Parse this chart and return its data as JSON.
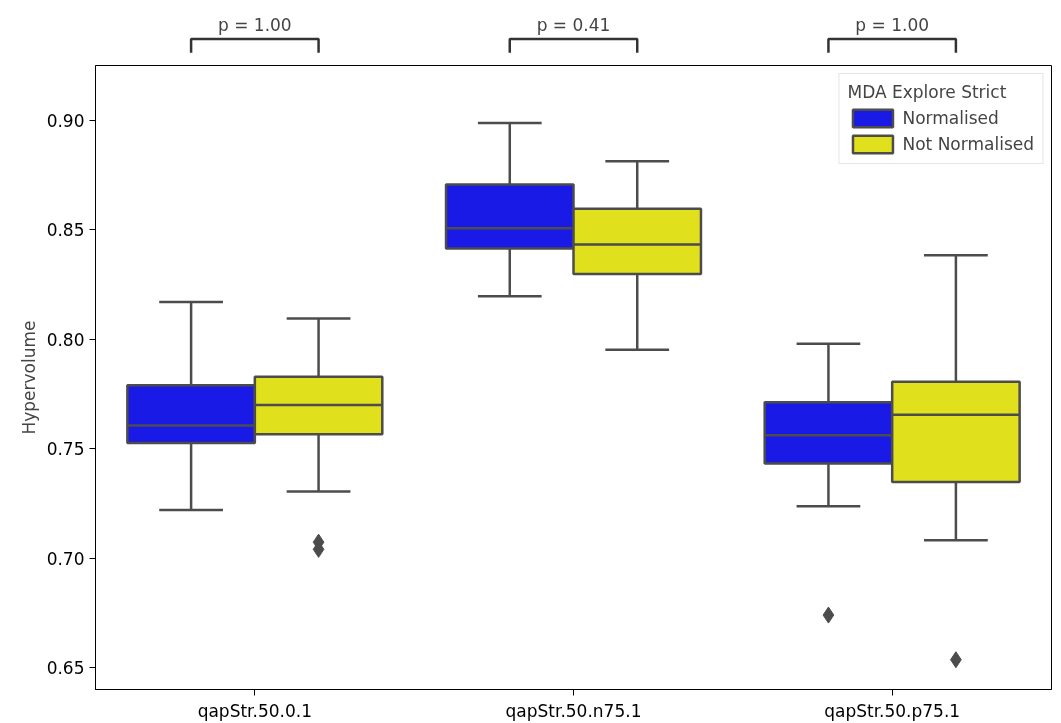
{
  "chart_data": {
    "type": "box",
    "categories": [
      "qapStr.50.0.1",
      "qapStr.50.n75.1",
      "qapStr.50.p75.1"
    ],
    "ylabel": "Hypervolume",
    "ylim": [
      0.64,
      0.925
    ],
    "yticks": [
      0.65,
      {
        "value": 0.7,
        "label": "0.70"
      },
      0.75,
      {
        "value": 0.8,
        "label": "0.80"
      },
      0.85,
      {
        "value": 0.9,
        "label": "0.90"
      }
    ],
    "legend": "top right",
    "legend_title": "MDA Explore Strict",
    "marker": "diamond",
    "annotations": [
      "p = 1.00",
      "p = 0.41",
      "p = 1.00"
    ],
    "series": [
      {
        "name": "Normalised",
        "color": "#1a1ae6",
        "boxes": [
          {
            "low": 0.722,
            "q1": 0.7526,
            "median": 0.7606,
            "q3": 0.779,
            "high": 0.817
          },
          {
            "low": 0.8196,
            "q1": 0.8414,
            "median": 0.8507,
            "q3": 0.8707,
            "high": 0.8987
          },
          {
            "low": 0.7237,
            "q1": 0.7432,
            "median": 0.7561,
            "q3": 0.7712,
            "high": 0.7979,
            "outliers": [
              0.674
            ]
          }
        ]
      },
      {
        "name": "Not Normalised",
        "color": "#e0e01c",
        "boxes": [
          {
            "low": 0.7304,
            "q1": 0.7566,
            "median": 0.7699,
            "q3": 0.7828,
            "high": 0.8094,
            "outliers": [
              0.7073,
              0.704
            ]
          },
          {
            "low": 0.7952,
            "q1": 0.8298,
            "median": 0.8432,
            "q3": 0.8596,
            "high": 0.8813
          },
          {
            "low": 0.7082,
            "q1": 0.7348,
            "median": 0.7655,
            "q3": 0.7806,
            "high": 0.8383,
            "outliers": [
              0.6536
            ]
          }
        ]
      }
    ]
  }
}
